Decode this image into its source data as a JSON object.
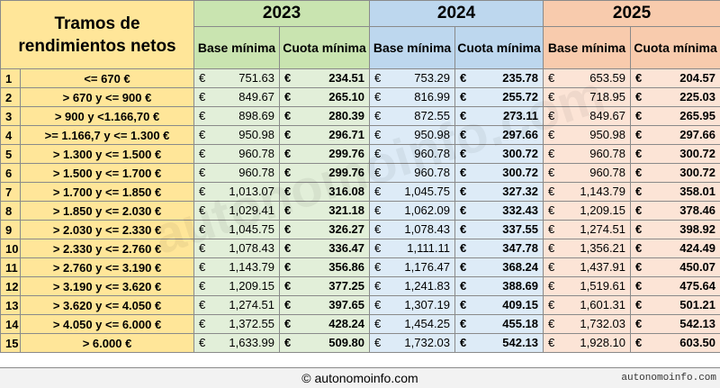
{
  "header": {
    "tramos_title": "Tramos de rendimientos netos",
    "sub_base": "Base mínima",
    "sub_cuota": "Cuota mínima",
    "years": [
      "2023",
      "2024",
      "2025"
    ]
  },
  "currency": "€",
  "rows": [
    {
      "n": "1",
      "range": "<= 670 €",
      "v": [
        "751.63",
        "234.51",
        "753.29",
        "235.78",
        "653.59",
        "204.57"
      ]
    },
    {
      "n": "2",
      "range": "> 670 y <= 900 €",
      "v": [
        "849.67",
        "265.10",
        "816.99",
        "255.72",
        "718.95",
        "225.03"
      ]
    },
    {
      "n": "3",
      "range": "> 900 y <1.166,70 €",
      "v": [
        "898.69",
        "280.39",
        "872.55",
        "273.11",
        "849.67",
        "265.95"
      ]
    },
    {
      "n": "4",
      "range": ">= 1.166,7 y <= 1.300 €",
      "v": [
        "950.98",
        "296.71",
        "950.98",
        "297.66",
        "950.98",
        "297.66"
      ]
    },
    {
      "n": "5",
      "range": "> 1.300 y <= 1.500 €",
      "v": [
        "960.78",
        "299.76",
        "960.78",
        "300.72",
        "960.78",
        "300.72"
      ]
    },
    {
      "n": "6",
      "range": "> 1.500 y <= 1.700 €",
      "v": [
        "960.78",
        "299.76",
        "960.78",
        "300.72",
        "960.78",
        "300.72"
      ]
    },
    {
      "n": "7",
      "range": "> 1.700 y <= 1.850 €",
      "v": [
        "1,013.07",
        "316.08",
        "1,045.75",
        "327.32",
        "1,143.79",
        "358.01"
      ]
    },
    {
      "n": "8",
      "range": "> 1.850 y <= 2.030 €",
      "v": [
        "1,029.41",
        "321.18",
        "1,062.09",
        "332.43",
        "1,209.15",
        "378.46"
      ]
    },
    {
      "n": "9",
      "range": "> 2.030 y <= 2.330 €",
      "v": [
        "1,045.75",
        "326.27",
        "1,078.43",
        "337.55",
        "1,274.51",
        "398.92"
      ]
    },
    {
      "n": "10",
      "range": "> 2.330 y <= 2.760 €",
      "v": [
        "1,078.43",
        "336.47",
        "1,111.11",
        "347.78",
        "1,356.21",
        "424.49"
      ]
    },
    {
      "n": "11",
      "range": "> 2.760 y <= 3.190 €",
      "v": [
        "1,143.79",
        "356.86",
        "1,176.47",
        "368.24",
        "1,437.91",
        "450.07"
      ]
    },
    {
      "n": "12",
      "range": "> 3.190 y <= 3.620 €",
      "v": [
        "1,209.15",
        "377.25",
        "1,241.83",
        "388.69",
        "1,519.61",
        "475.64"
      ]
    },
    {
      "n": "13",
      "range": "> 3.620 y <= 4.050 €",
      "v": [
        "1,274.51",
        "397.65",
        "1,307.19",
        "409.15",
        "1,601.31",
        "501.21"
      ]
    },
    {
      "n": "14",
      "range": "> 4.050 y <= 6.000 €",
      "v": [
        "1,372.55",
        "428.24",
        "1,454.25",
        "455.18",
        "1,732.03",
        "542.13"
      ]
    },
    {
      "n": "15",
      "range": "> 6.000 €",
      "v": [
        "1,633.99",
        "509.80",
        "1,732.03",
        "542.13",
        "1,928.10",
        "603.50"
      ]
    }
  ],
  "footer": {
    "copyright": "© autonomoinfo.com",
    "site": "autonomoinfo.com"
  },
  "watermark": "autonomoinfo.com"
}
